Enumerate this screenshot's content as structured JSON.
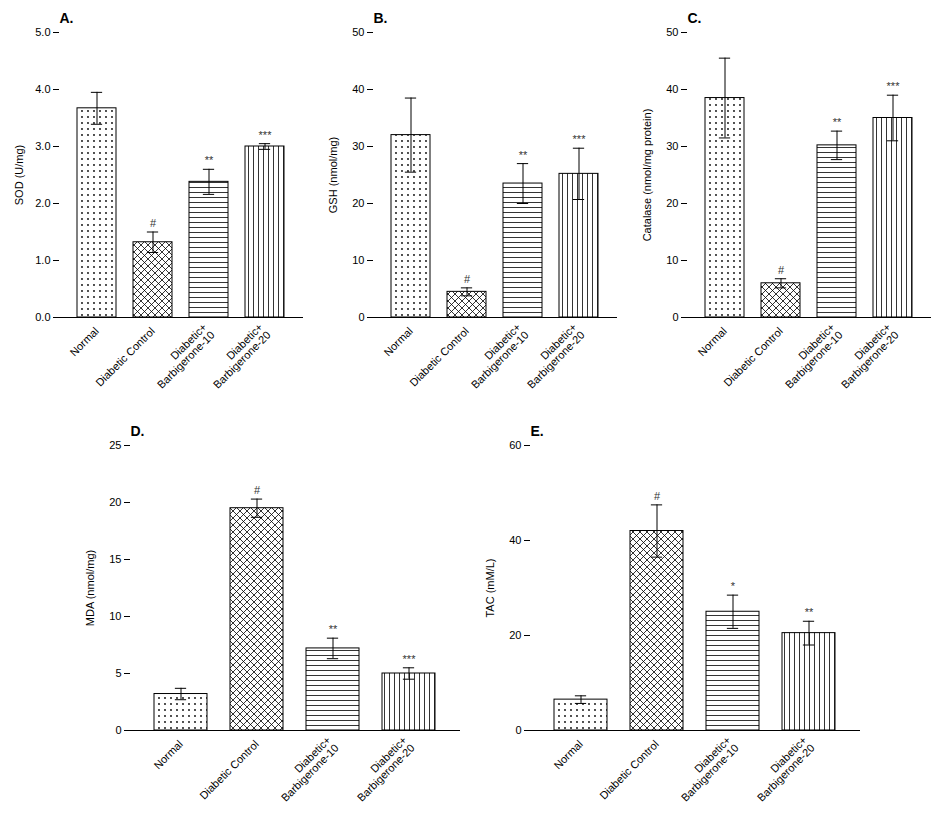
{
  "chart_data": [
    {
      "type": "bar",
      "title": "A.",
      "categories": [
        "Normal",
        "Diabetic Control",
        "Diabetic+\nBarbigerone-10",
        "Diabetic+\nBarbigerone-20"
      ],
      "values": [
        3.67,
        1.32,
        2.38,
        3.0
      ],
      "errors": [
        0.28,
        0.18,
        0.22,
        0.05
      ],
      "annotations": [
        null,
        "#",
        "**",
        "***"
      ],
      "ylabel": "SOD (U/mg)",
      "ylim": [
        0,
        5
      ],
      "yticks": [
        0,
        1,
        2,
        3,
        4,
        5
      ],
      "grid": false
    },
    {
      "type": "bar",
      "title": "B.",
      "categories": [
        "Normal",
        "Diabetic Control",
        "Diabetic+\nBarbigerone-10",
        "Diabetic+\nBarbigerone-20"
      ],
      "values": [
        32.0,
        4.5,
        23.5,
        25.2
      ],
      "errors": [
        6.5,
        0.7,
        3.5,
        4.5
      ],
      "annotations": [
        null,
        "#",
        "**",
        "***"
      ],
      "ylabel": "GSH (nmol/mg)",
      "ylim": [
        0,
        50
      ],
      "yticks": [
        0,
        10,
        20,
        30,
        40,
        50
      ],
      "grid": false
    },
    {
      "type": "bar",
      "title": "C.",
      "categories": [
        "Normal",
        "Diabetic Control",
        "Diabetic+\nBarbigerone-10",
        "Diabetic+\nBarbigerone-20"
      ],
      "values": [
        38.5,
        6.0,
        30.2,
        35.0
      ],
      "errors": [
        7.0,
        0.8,
        2.5,
        4.0
      ],
      "annotations": [
        null,
        "#",
        "**",
        "***"
      ],
      "ylabel": "Catalase (nmol/mg protein)",
      "ylim": [
        0,
        50
      ],
      "yticks": [
        0,
        10,
        20,
        30,
        40,
        50
      ],
      "grid": false
    },
    {
      "type": "bar",
      "title": "D.",
      "categories": [
        "Normal",
        "Diabetic Control",
        "Diabetic+\nBarbigerone-10",
        "Diabetic+\nBarbigerone-20"
      ],
      "values": [
        3.2,
        19.5,
        7.2,
        5.0
      ],
      "errors": [
        0.5,
        0.8,
        0.9,
        0.5
      ],
      "annotations": [
        null,
        "#",
        "**",
        "***"
      ],
      "ylabel": "MDA (nmol/mg)",
      "ylim": [
        0,
        25
      ],
      "yticks": [
        0,
        5,
        10,
        15,
        20,
        25
      ],
      "grid": false
    },
    {
      "type": "bar",
      "title": "E.",
      "categories": [
        "Normal",
        "Diabetic Control",
        "Diabetic+\nBarbigerone-10",
        "Diabetic+\nBarbigerone-20"
      ],
      "values": [
        6.5,
        42.0,
        25.0,
        20.5
      ],
      "errors": [
        0.8,
        5.5,
        3.5,
        2.5
      ],
      "annotations": [
        null,
        "#",
        "*",
        "**"
      ],
      "ylabel": "TAC (mM/L)",
      "ylim": [
        0,
        60
      ],
      "yticks": [
        0,
        20,
        40,
        60
      ],
      "grid": false
    }
  ]
}
